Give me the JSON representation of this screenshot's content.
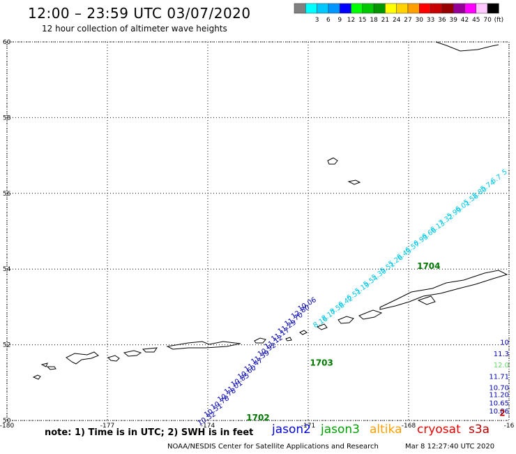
{
  "header": {
    "title": "12:00 – 23:59 UTC 03/07/2020",
    "subtitle": "12 hour collection of altimeter wave heights"
  },
  "colorbar": {
    "bins": [
      {
        "color": "#808080",
        "label": ""
      },
      {
        "color": "#00ffff",
        "label": "3"
      },
      {
        "color": "#00c8ff",
        "label": "6"
      },
      {
        "color": "#0096ff",
        "label": "9"
      },
      {
        "color": "#0000ff",
        "label": "12"
      },
      {
        "color": "#00ff00",
        "label": "15"
      },
      {
        "color": "#00c800",
        "label": "18"
      },
      {
        "color": "#009600",
        "label": "21"
      },
      {
        "color": "#ffff00",
        "label": "24"
      },
      {
        "color": "#ffd200",
        "label": "27"
      },
      {
        "color": "#ffa000",
        "label": "30"
      },
      {
        "color": "#ff0000",
        "label": "33"
      },
      {
        "color": "#c80000",
        "label": "36"
      },
      {
        "color": "#960000",
        "label": "39"
      },
      {
        "color": "#960096",
        "label": "42"
      },
      {
        "color": "#ff00ff",
        "label": "45"
      },
      {
        "color": "#ffc8ff",
        "label": "70"
      },
      {
        "color": "#000000",
        "label": "(ft)"
      }
    ]
  },
  "map": {
    "lon_min": -180,
    "lon_max": -165,
    "lat_min": 50,
    "lat_max": 60,
    "lon_ticks": [
      {
        "value": -180,
        "label": "-180"
      },
      {
        "value": -177,
        "label": "-177"
      },
      {
        "value": -174,
        "label": "-174"
      },
      {
        "value": -171,
        "label": "-171"
      },
      {
        "value": -168,
        "label": "-168"
      },
      {
        "value": -165,
        "label": "-16"
      }
    ],
    "lat_ticks": [
      {
        "value": 60,
        "label": "60"
      },
      {
        "value": 58,
        "label": "58"
      },
      {
        "value": 56,
        "label": "56"
      },
      {
        "value": 54,
        "label": "54"
      },
      {
        "value": 52,
        "label": "52"
      },
      {
        "value": 50,
        "label": "50"
      }
    ]
  },
  "tracks": [
    {
      "name": "jason2-west",
      "color": "#0000b4",
      "points": [
        {
          "lon": -174.0,
          "lat": 50.0,
          "label": "10.32"
        },
        {
          "lon": -173.8,
          "lat": 50.22,
          "label": "10.51"
        },
        {
          "lon": -173.6,
          "lat": 50.42,
          "label": "10.78"
        },
        {
          "lon": -173.4,
          "lat": 50.62,
          "label": "10.78"
        },
        {
          "lon": -173.2,
          "lat": 50.82,
          "label": "11.01"
        },
        {
          "lon": -173.0,
          "lat": 51.02,
          "label": "10.85"
        },
        {
          "lon": -172.8,
          "lat": 51.22,
          "label": "10.60"
        },
        {
          "lon": -172.6,
          "lat": 51.42,
          "label": "11.47"
        },
        {
          "lon": -172.4,
          "lat": 51.62,
          "label": "11.39"
        },
        {
          "lon": -172.2,
          "lat": 51.82,
          "label": "10.92"
        },
        {
          "lon": -172.0,
          "lat": 52.02,
          "label": "11.12"
        },
        {
          "lon": -171.8,
          "lat": 52.22,
          "label": "11.17"
        },
        {
          "lon": -171.6,
          "lat": 52.42,
          "label": "11.29"
        },
        {
          "lon": -171.4,
          "lat": 52.62,
          "label": "11.70"
        },
        {
          "lon": -171.2,
          "lat": 52.82,
          "label": "12.80"
        },
        {
          "lon": -171.0,
          "lat": 53.02,
          "label": "10.06"
        }
      ]
    },
    {
      "name": "jason3-cyan",
      "color": "#00c8e6",
      "points": [
        {
          "lon": -170.6,
          "lat": 52.55,
          "label": "8.16"
        },
        {
          "lon": -170.35,
          "lat": 52.73,
          "label": "8.17"
        },
        {
          "lon": -170.1,
          "lat": 52.91,
          "label": "8.58"
        },
        {
          "lon": -169.85,
          "lat": 53.09,
          "label": "6.42"
        },
        {
          "lon": -169.6,
          "lat": 53.27,
          "label": "6.51"
        },
        {
          "lon": -169.35,
          "lat": 53.45,
          "label": "5.19"
        },
        {
          "lon": -169.1,
          "lat": 53.63,
          "label": "5.54"
        },
        {
          "lon": -168.85,
          "lat": 53.81,
          "label": "5.39"
        },
        {
          "lon": -168.6,
          "lat": 53.99,
          "label": "5.51"
        },
        {
          "lon": -168.35,
          "lat": 54.17,
          "label": "5.26"
        },
        {
          "lon": -168.1,
          "lat": 54.35,
          "label": "6.43"
        },
        {
          "lon": -167.85,
          "lat": 54.53,
          "label": "6.57"
        },
        {
          "lon": -167.6,
          "lat": 54.71,
          "label": "6.93"
        },
        {
          "lon": -167.35,
          "lat": 54.89,
          "label": "6.66"
        },
        {
          "lon": -167.1,
          "lat": 55.07,
          "label": "6.13"
        },
        {
          "lon": -166.85,
          "lat": 55.25,
          "label": "7.32"
        },
        {
          "lon": -166.6,
          "lat": 55.43,
          "label": "5.99"
        },
        {
          "lon": -166.35,
          "lat": 55.61,
          "label": "6.01"
        },
        {
          "lon": -166.1,
          "lat": 55.79,
          "label": "5.56"
        },
        {
          "lon": -165.85,
          "lat": 55.97,
          "label": "5.80"
        },
        {
          "lon": -165.6,
          "lat": 56.15,
          "label": "5.74"
        },
        {
          "lon": -165.35,
          "lat": 56.33,
          "label": "6.7"
        },
        {
          "lon": -165.1,
          "lat": 56.51,
          "label": "5"
        }
      ]
    },
    {
      "name": "jason2-east",
      "color": "#0000b4",
      "points": [
        {
          "lon": -165.0,
          "lat": 52.0,
          "label": "10"
        },
        {
          "lon": -165.0,
          "lat": 51.7,
          "label": "11.3"
        },
        {
          "lon": -165.0,
          "lat": 51.4,
          "label": "12.0",
          "color": "#66d966"
        },
        {
          "lon": -165.0,
          "lat": 51.1,
          "label": "11.71"
        },
        {
          "lon": -165.0,
          "lat": 50.8,
          "label": "10.70"
        },
        {
          "lon": -165.0,
          "lat": 50.62,
          "label": "11.20"
        },
        {
          "lon": -165.0,
          "lat": 50.4,
          "label": "10.65"
        },
        {
          "lon": -165.0,
          "lat": 50.18,
          "label": "10.86"
        }
      ]
    }
  ],
  "time_labels": [
    {
      "lon": -172.5,
      "lat": 50.0,
      "label": "1702",
      "color": "#007800"
    },
    {
      "lon": -170.6,
      "lat": 51.45,
      "label": "1703",
      "color": "#007800"
    },
    {
      "lon": -167.4,
      "lat": 54.0,
      "label": "1704",
      "color": "#007800"
    },
    {
      "lon": -165.2,
      "lat": 50.12,
      "label": "2",
      "color": "#b40000"
    }
  ],
  "footer": {
    "note": "note: 1) Time is in UTC; 2) SWH is in feet",
    "satellites": [
      {
        "name": "jason2",
        "color": "#0000dc"
      },
      {
        "name": "jason3",
        "color": "#00a000"
      },
      {
        "name": "altika",
        "color": "#ffa000"
      },
      {
        "name": "cryosat",
        "color": "#e60000"
      },
      {
        "name": "s3a",
        "color": "#b40000"
      }
    ],
    "credit": "NOAA/NESDIS Center for Satellite Applications and Research",
    "timestamp": "Mar  8 12:27:40 UTC 2020"
  }
}
